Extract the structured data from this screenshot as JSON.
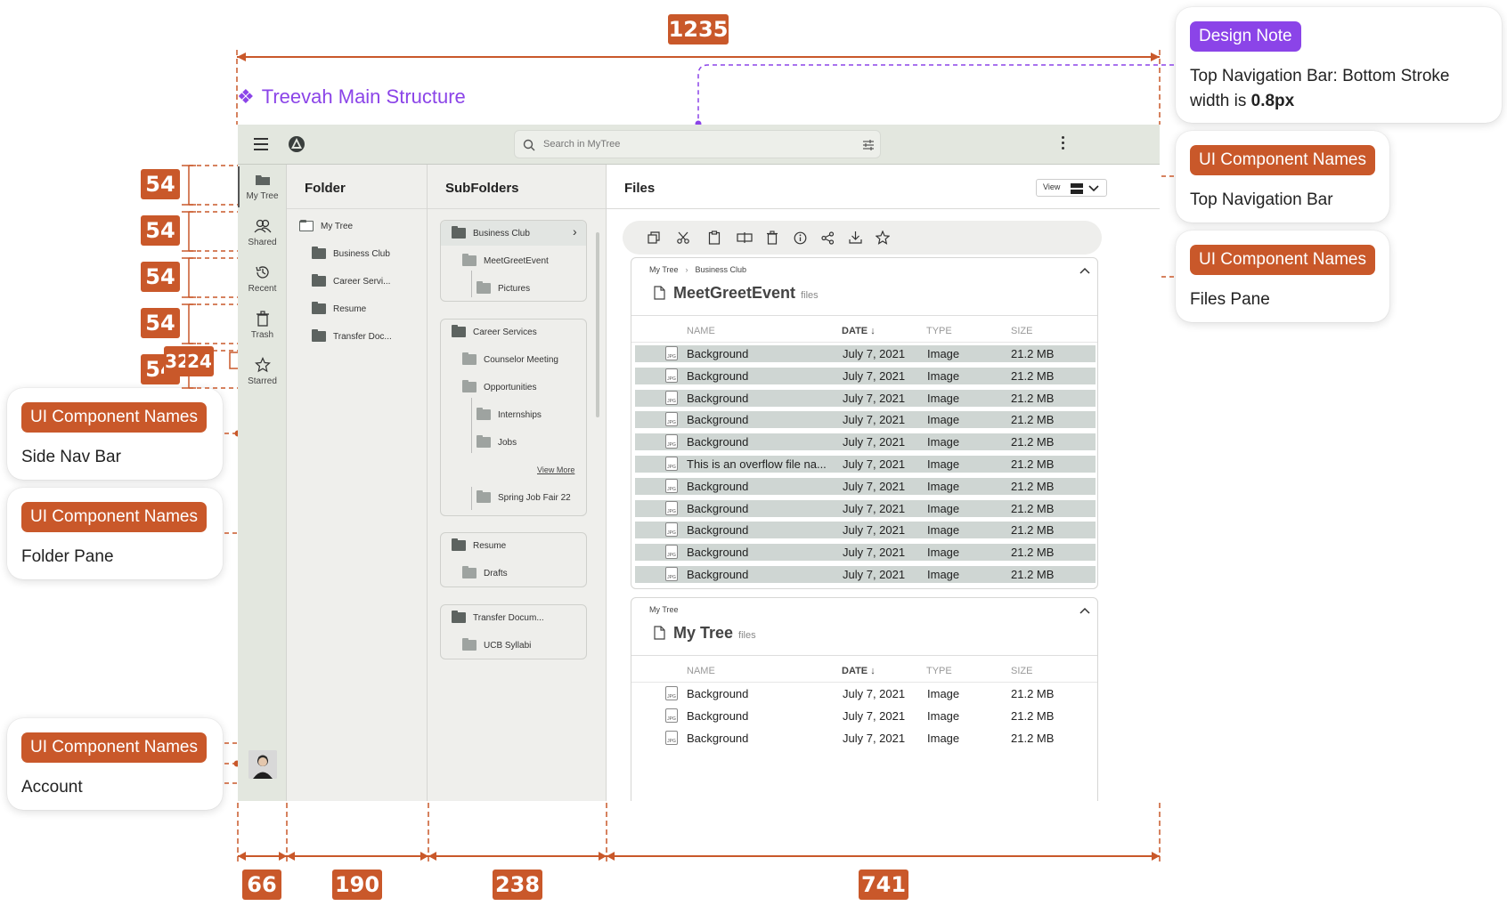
{
  "title": "Treevah Main Structure",
  "colors": {
    "accent": "#8b44e8",
    "measure": "#c9582a"
  },
  "measurements": {
    "total_width": "1235",
    "nav_item_heights": [
      "54",
      "54",
      "54",
      "54",
      "54"
    ],
    "nav_spacing_values": [
      "32",
      "24"
    ],
    "column_widths": [
      "66",
      "190",
      "238",
      "741"
    ]
  },
  "callouts": {
    "design_note": {
      "tag": "Design Note",
      "text": "Top Navigation Bar: Bottom Stroke width is ",
      "bold": "0.8px"
    },
    "top_nav": {
      "tag": "UI Component Names",
      "text": "Top Navigation Bar"
    },
    "files_pane": {
      "tag": "UI Component Names",
      "text": "Files Pane"
    },
    "side_nav": {
      "tag": "UI Component Names",
      "text": "Side Nav Bar"
    },
    "folder_pane": {
      "tag": "UI Component Names",
      "text": "Folder Pane"
    },
    "account": {
      "tag": "UI Component Names",
      "text": "Account"
    }
  },
  "app": {
    "search_placeholder": "Search in MyTree",
    "nav_items": [
      "My Tree",
      "Shared",
      "Recent",
      "Trash",
      "Starred"
    ],
    "folder_pane": {
      "title": "Folder",
      "items": [
        "My Tree",
        "Business Club",
        "Career Servi...",
        "Resume",
        "Transfer Doc..."
      ]
    },
    "sub_pane": {
      "title": "SubFolders",
      "business_club": {
        "title": "Business Club",
        "items": [
          "MeetGreetEvent",
          "Pictures"
        ]
      },
      "career_services": {
        "title": "Career Services",
        "items": [
          "Counselor Meeting",
          "Opportunities",
          "Internships",
          "Jobs",
          "Spring Job Fair 22"
        ],
        "view_more": "View More"
      },
      "resume": {
        "title": "Resume",
        "items": [
          "Drafts"
        ]
      },
      "transfer": {
        "title": "Transfer Docum...",
        "items": [
          "UCB Syllabi"
        ]
      }
    },
    "files_pane": {
      "title": "Files",
      "view_label": "View",
      "section1": {
        "breadcrumb": [
          "My Tree",
          "Business Club"
        ],
        "name": "MeetGreetEvent",
        "suffix": "files",
        "columns": [
          "NAME",
          "DATE",
          "TYPE",
          "SIZE"
        ],
        "rows": [
          {
            "name": "Background",
            "date": "July 7, 2021",
            "type": "Image",
            "size": "21.2 MB"
          },
          {
            "name": "Background",
            "date": "July 7, 2021",
            "type": "Image",
            "size": "21.2 MB"
          },
          {
            "name": "Background",
            "date": "July 7, 2021",
            "type": "Image",
            "size": "21.2 MB"
          },
          {
            "name": "Background",
            "date": "July 7, 2021",
            "type": "Image",
            "size": "21.2 MB"
          },
          {
            "name": "Background",
            "date": "July 7, 2021",
            "type": "Image",
            "size": "21.2 MB"
          },
          {
            "name": "This is an overflow file na...",
            "date": "July 7, 2021",
            "type": "Image",
            "size": "21.2 MB"
          },
          {
            "name": "Background",
            "date": "July 7, 2021",
            "type": "Image",
            "size": "21.2 MB"
          },
          {
            "name": "Background",
            "date": "July 7, 2021",
            "type": "Image",
            "size": "21.2 MB"
          },
          {
            "name": "Background",
            "date": "July 7, 2021",
            "type": "Image",
            "size": "21.2 MB"
          },
          {
            "name": "Background",
            "date": "July 7, 2021",
            "type": "Image",
            "size": "21.2 MB"
          },
          {
            "name": "Background",
            "date": "July 7, 2021",
            "type": "Image",
            "size": "21.2 MB"
          }
        ]
      },
      "section2": {
        "breadcrumb": [
          "My Tree"
        ],
        "name": "My Tree",
        "suffix": "files",
        "columns": [
          "NAME",
          "DATE",
          "TYPE",
          "SIZE"
        ],
        "rows": [
          {
            "name": "Background",
            "date": "July 7, 2021",
            "type": "Image",
            "size": "21.2 MB"
          },
          {
            "name": "Background",
            "date": "July 7, 2021",
            "type": "Image",
            "size": "21.2 MB"
          },
          {
            "name": "Background",
            "date": "July 7, 2021",
            "type": "Image",
            "size": "21.2 MB"
          }
        ]
      }
    }
  }
}
